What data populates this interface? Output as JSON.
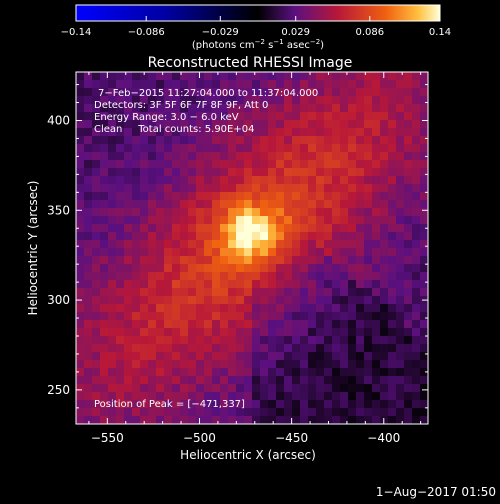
{
  "chart_data": {
    "type": "heatmap",
    "title": "Reconstructed RHESSI Image",
    "xlabel": "Heliocentric X (arcsec)",
    "ylabel": "Heliocentric Y (arcsec)",
    "xlim": [
      -567,
      -376
    ],
    "ylim": [
      231,
      427
    ],
    "xticks": [
      -550,
      -500,
      -450,
      -400
    ],
    "yticks": [
      250,
      300,
      350,
      400
    ],
    "xtick_labels": [
      "−550",
      "−500",
      "−450",
      "−400"
    ],
    "ytick_labels": [
      "250",
      "300",
      "350",
      "400"
    ],
    "colorbar": {
      "range": [
        -0.14,
        0.14
      ],
      "ticks": [
        -0.14,
        -0.086,
        -0.029,
        0.029,
        0.086,
        0.14
      ],
      "tick_labels": [
        "−0.14",
        "−0.086",
        "−0.029",
        "0.029",
        "0.086",
        "0.14"
      ],
      "unit_label": "(photons cm",
      "unit_exp1": "−2",
      "unit_mid": " s",
      "unit_exp2": "−1",
      "unit_mid2": " asec",
      "unit_exp3": "−2",
      "unit_end": ")"
    },
    "annotations": [
      "7−Feb−2015 11:27:04.000 to 11:37:04.000",
      "Detectors: 3F 5F 6F 7F 8F 9F, Att 0",
      "Energy Range: 3.0 − 6.0 keV",
      "Clean     Total counts: 5.90E+04"
    ],
    "peak_label": "Position of Peak = [−471,337]",
    "peak": {
      "x": -471,
      "y": 337,
      "value": 0.14
    },
    "grid": false
  },
  "timestamp": "1−Aug−2017 01:50",
  "colors": {
    "background": "#000000",
    "foreground": "#ffffff",
    "negative_high": "#1010ff",
    "zero": "#000000",
    "positive_low": "#7a1890",
    "positive_mid": "#e82a1c",
    "positive_high": "#ffffc8"
  }
}
